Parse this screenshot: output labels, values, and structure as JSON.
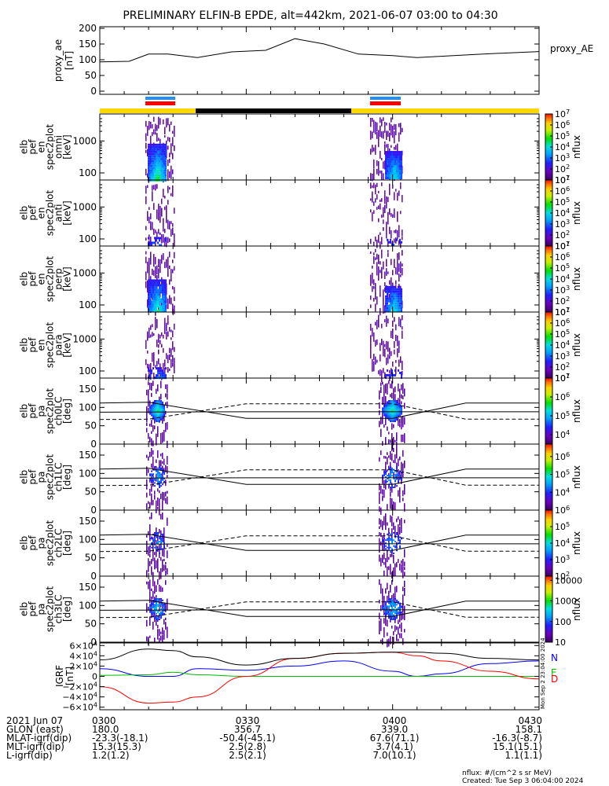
{
  "title": "PRELIMINARY ELFIN-B EPDE, alt=442km, 2021-06-07 03:00 to 04:30",
  "colors": {
    "frame": "#000000",
    "state_bar_science": "#ffd700",
    "state_bar_night": "#000000",
    "bar_blue": "#1e90ff",
    "bar_red": "#ff0000",
    "igrf_n": "#0000ff",
    "igrf_e": "#00bb00",
    "igrf_d": "#ff0000",
    "igrf_total": "#000000"
  },
  "chart_data": [
    {
      "type": "line",
      "title": "",
      "ylabel": "proxy_ae [nT]",
      "legend": "proxy_AE",
      "ylim": [
        0,
        200
      ],
      "yticks": [
        0,
        50,
        100,
        150,
        200
      ],
      "x_minutes": [
        0,
        6,
        10,
        14,
        20,
        27,
        34,
        40,
        46,
        53,
        60,
        65,
        71,
        77,
        84,
        90
      ],
      "values": [
        93,
        95,
        118,
        118,
        107,
        125,
        130,
        167,
        150,
        118,
        113,
        107,
        112,
        117,
        122,
        126
      ]
    },
    {
      "type": "heatmap",
      "ylabel": "elb pef en spec2plot omni [keV]",
      "ylog": true,
      "yrange": [
        60,
        7000
      ],
      "yticks": [
        100,
        1000
      ],
      "colorbar": {
        "label": "nflux",
        "min_exp": 1,
        "max_exp": 7,
        "ticks": [
          "10^1",
          "10^2",
          "10^3",
          "10^4",
          "10^5",
          "10^6",
          "10^7"
        ]
      }
    },
    {
      "type": "heatmap",
      "ylabel": "elb pef en spec2plot anti [keV]",
      "ylog": true,
      "yrange": [
        60,
        7000
      ],
      "yticks": [
        100,
        1000
      ],
      "colorbar": {
        "label": "nflux",
        "min_exp": 1,
        "max_exp": 7,
        "ticks": [
          "10^1",
          "10^2",
          "10^3",
          "10^4",
          "10^5",
          "10^6",
          "10^7"
        ]
      }
    },
    {
      "type": "heatmap",
      "ylabel": "elb pef en spec2plot perp [keV]",
      "ylog": true,
      "yrange": [
        60,
        7000
      ],
      "yticks": [
        100,
        1000
      ],
      "colorbar": {
        "label": "nflux",
        "min_exp": 1,
        "max_exp": 7,
        "ticks": [
          "10^1",
          "10^2",
          "10^3",
          "10^4",
          "10^5",
          "10^6",
          "10^7"
        ]
      }
    },
    {
      "type": "heatmap",
      "ylabel": "elb pef en spec2plot para [keV]",
      "ylog": true,
      "yrange": [
        60,
        7000
      ],
      "yticks": [
        100,
        1000
      ],
      "colorbar": {
        "label": "nflux",
        "min_exp": 1,
        "max_exp": 7,
        "ticks": [
          "10^1",
          "10^2",
          "10^3",
          "10^4",
          "10^5",
          "10^6",
          "10^7"
        ]
      }
    },
    {
      "type": "heatmap",
      "ylabel": "elb pef pa spec2plot ch0LC [deg]",
      "yrange": [
        0,
        180
      ],
      "yticks": [
        0,
        50,
        100,
        150
      ],
      "colorbar": {
        "label": "nflux",
        "min_exp": 3.5,
        "max_exp": 7,
        "ticks": [
          "10^4",
          "10^5",
          "10^6",
          "10^7"
        ]
      }
    },
    {
      "type": "heatmap",
      "ylabel": "elb pef pa spec2plot ch1LC [deg]",
      "yrange": [
        0,
        180
      ],
      "yticks": [
        0,
        50,
        100,
        150
      ],
      "colorbar": {
        "label": "nflux",
        "min_exp": 3,
        "max_exp": 6.7,
        "ticks": [
          "10^4",
          "10^5",
          "10^6"
        ]
      }
    },
    {
      "type": "heatmap",
      "ylabel": "elb pef pa spec2plot ch2LC [deg]",
      "yrange": [
        0,
        180
      ],
      "yticks": [
        0,
        50,
        100,
        150
      ],
      "colorbar": {
        "label": "nflux",
        "min_exp": 2,
        "max_exp": 6,
        "ticks": [
          "10^2",
          "10^3",
          "10^4",
          "10^5",
          "10^6"
        ]
      }
    },
    {
      "type": "heatmap",
      "ylabel": "elb pef pa spec2plot ch3LC [deg]",
      "yrange": [
        0,
        180
      ],
      "yticks": [
        0,
        50,
        100,
        150
      ],
      "colorbar": {
        "label": "nflux",
        "min_exp": 1,
        "max_exp": 4.2,
        "ticks": [
          "10",
          "100",
          "1000",
          "10000"
        ]
      }
    },
    {
      "type": "line",
      "ylabel": "IGRF [nT]",
      "ylim": [
        -65000,
        65000
      ],
      "ytick_labels": [
        "6×10^4",
        "4×10^4",
        "2×10^4",
        "0",
        "−2×10^4",
        "−4×10^4",
        "−6×10^4"
      ],
      "legend": [
        "N",
        "E",
        "D"
      ],
      "side_label": "Mon Sep  2 23:04:00 2024",
      "x_minutes": [
        0,
        10,
        15,
        20,
        30,
        40,
        50,
        60,
        65,
        70,
        80,
        90
      ],
      "series": [
        {
          "name": "N",
          "values": [
            15000,
            0,
            0,
            15000,
            12000,
            20000,
            30000,
            10000,
            0,
            5000,
            25000,
            30000
          ]
        },
        {
          "name": "E",
          "values": [
            2000,
            3000,
            8000,
            3000,
            0,
            0,
            0,
            0,
            0,
            0,
            0,
            0
          ]
        },
        {
          "name": "D",
          "values": [
            -20000,
            -52000,
            -50000,
            -40000,
            0,
            35000,
            45000,
            47000,
            40000,
            30000,
            10000,
            -5000
          ]
        },
        {
          "values": [
            32000,
            53000,
            50000,
            38000,
            22000,
            35000,
            45000,
            47000,
            47000,
            45000,
            35000,
            32000
          ]
        }
      ]
    }
  ],
  "xaxis": {
    "date": "2021 Jun 07",
    "rows": [
      {
        "label": "2021 Jun 07",
        "values": [
          "0300",
          "0330",
          "0400",
          "0430"
        ]
      },
      {
        "label": "GLON (east)",
        "values": [
          "180.0",
          "356.7",
          "339.0",
          "158.1"
        ]
      },
      {
        "label": "MLAT-igrf(dip)",
        "values": [
          "-23.3(-18.1)",
          "-50.4(-45.1)",
          "67.6(71.1)",
          "-16.3(-8.7)"
        ]
      },
      {
        "label": "MLT-igrf(dip)",
        "values": [
          "15.3(15.3)",
          "2.5(2.8)",
          "3.7(4.1)",
          "15.1(15.1)"
        ]
      },
      {
        "label": "L-igrf(dip)",
        "values": [
          "1.2(1.2)",
          "2.5(2.1)",
          "7.0(10.1)",
          "1.1(1.1)"
        ]
      }
    ]
  },
  "footer": {
    "units": "nflux: #/(cm^2 s sr MeV)",
    "created": "Created: Tue Sep  3 06:04:00 2024"
  }
}
